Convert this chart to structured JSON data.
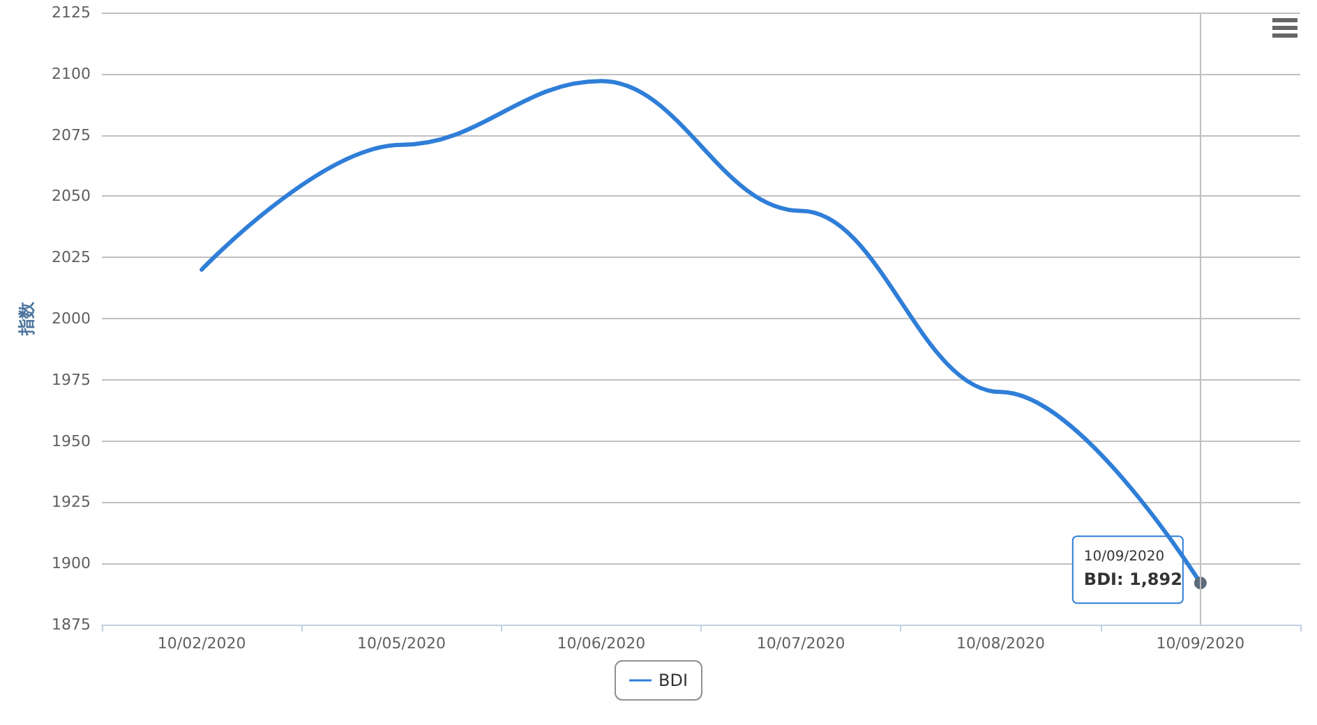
{
  "chart_data": {
    "type": "line",
    "ylabel": "指数",
    "categories": [
      "10/02/2020",
      "10/05/2020",
      "10/06/2020",
      "10/07/2020",
      "10/08/2020",
      "10/09/2020"
    ],
    "series": [
      {
        "name": "BDI",
        "color": "#2f7ed8",
        "values": [
          2020,
          2071,
          2097,
          2044,
          1970,
          1892
        ]
      }
    ],
    "ylim": [
      1875,
      2125
    ],
    "yticks": [
      1875,
      1900,
      1925,
      1950,
      1975,
      2000,
      2025,
      2050,
      2075,
      2100,
      2125
    ],
    "grid": "y",
    "legend": "bottom",
    "marker": "none",
    "line_style": "solid",
    "ref_lines": [
      {
        "axis": "x",
        "value": "10/09/2020",
        "color": "#c0c0c0"
      }
    ],
    "annotations": [
      {
        "text": "10/09/2020\nBDI: 1,892",
        "x": "10/09/2020",
        "y": 1892
      }
    ]
  }
}
